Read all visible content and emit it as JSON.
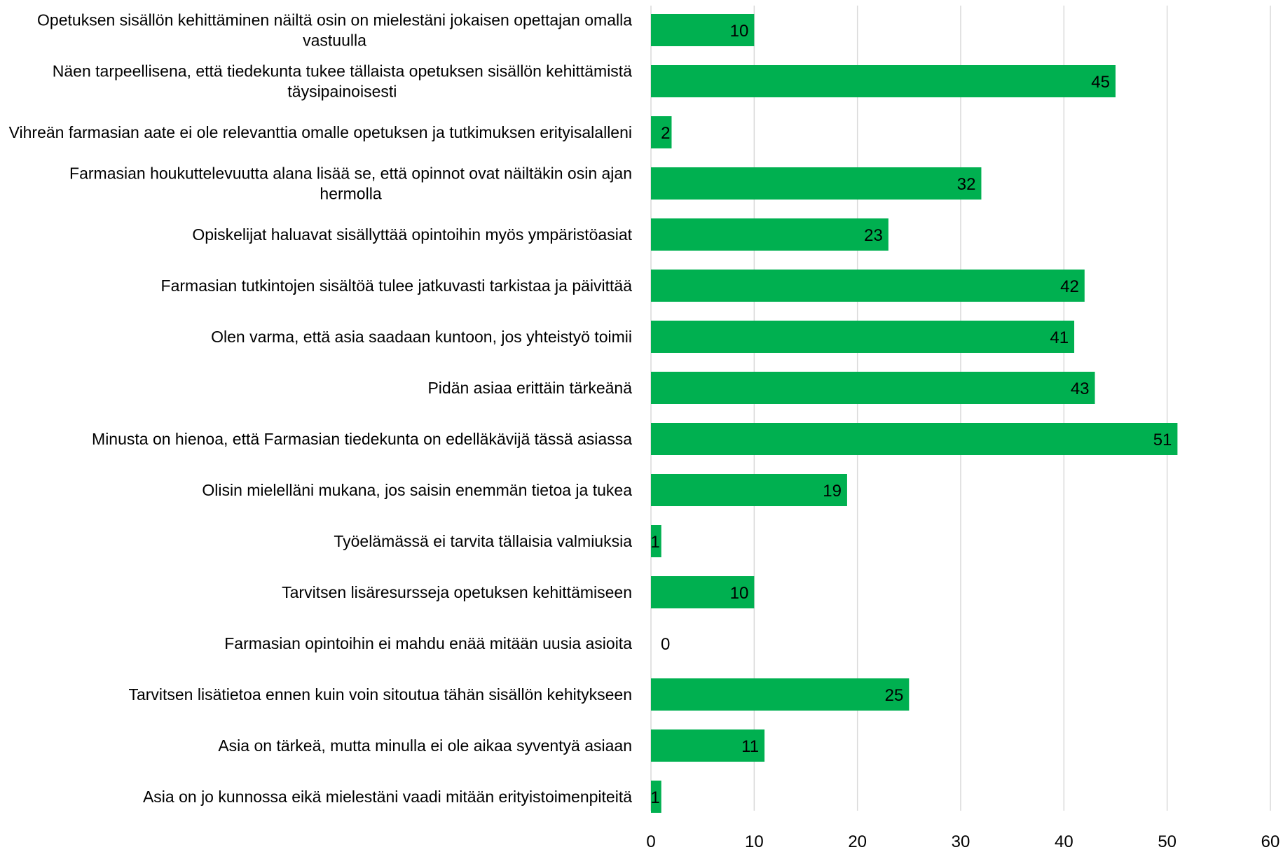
{
  "chart_data": {
    "type": "bar",
    "orientation": "horizontal",
    "categories": [
      "Opetuksen sisällön kehittäminen näiltä osin on mielestäni jokaisen opettajan omalla vastuulla",
      "Näen tarpeellisena, että tiedekunta tukee tällaista opetuksen sisällön kehittämistä täysipainoisesti",
      "Vihreän farmasian aate ei ole relevanttia omalle opetuksen ja tutkimuksen erityisalalleni",
      "Farmasian houkuttelevuutta alana lisää se, että opinnot ovat näiltäkin osin ajan hermolla",
      "Opiskelijat haluavat sisällyttää opintoihin myös ympäristöasiat",
      "Farmasian tutkintojen sisältöä tulee jatkuvasti tarkistaa ja päivittää",
      "Olen varma, että asia saadaan kuntoon, jos yhteistyö toimii",
      "Pidän asiaa erittäin tärkeänä",
      "Minusta on hienoa, että Farmasian tiedekunta on edelläkävijä tässä asiassa",
      "Olisin mielelläni mukana, jos saisin enemmän tietoa ja tukea",
      "Työelämässä ei tarvita tällaisia valmiuksia",
      "Tarvitsen lisäresursseja opetuksen kehittämiseen",
      "Farmasian opintoihin ei mahdu enää mitään uusia asioita",
      "Tarvitsen lisätietoa ennen kuin voin sitoutua tähän sisällön kehitykseen",
      "Asia on tärkeä, mutta minulla ei ole aikaa syventyä asiaan",
      "Asia on jo kunnossa eikä mielestäni vaadi mitään erityistoimenpiteitä"
    ],
    "values": [
      10,
      45,
      2,
      32,
      23,
      42,
      41,
      43,
      51,
      19,
      1,
      10,
      0,
      25,
      11,
      1
    ],
    "data_labels": [
      "10",
      "45",
      "2",
      "32",
      "23",
      "42",
      "41",
      "43",
      "51",
      "19",
      "1",
      "10",
      "0",
      "25",
      "11",
      "1"
    ],
    "xlim": [
      0,
      60
    ],
    "x_ticks": [
      0,
      10,
      20,
      30,
      40,
      50,
      60
    ],
    "x_tick_labels": [
      "0",
      "10",
      "20",
      "30",
      "40",
      "50",
      "60"
    ],
    "grid": true,
    "bar_color": "#00B050",
    "grid_color": "#D9D9D9",
    "text_color": "#000000"
  }
}
